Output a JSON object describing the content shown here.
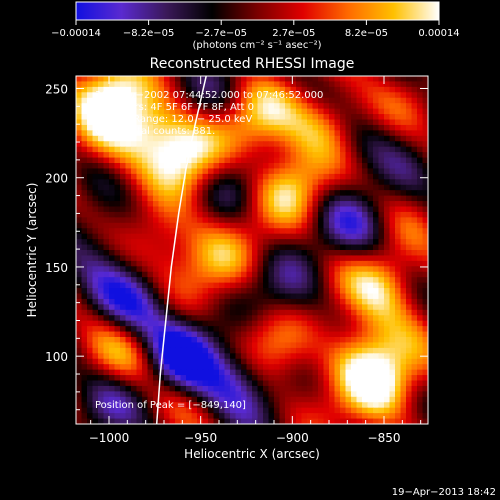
{
  "chart_data": {
    "type": "heatmap",
    "title": "Reconstructed RHESSI Image",
    "xlabel": "Heliocentric X (arcsec)",
    "ylabel": "Heliocentric Y (arcsec)",
    "xlim": [
      -1018,
      -826
    ],
    "ylim": [
      62,
      257
    ],
    "x_ticks": [
      -1000,
      -950,
      -900,
      -850
    ],
    "x_tick_labels": [
      "−1000",
      "−950",
      "−900",
      "−850"
    ],
    "y_ticks": [
      100,
      150,
      200,
      250
    ],
    "y_tick_labels": [
      "100",
      "150",
      "200",
      "250"
    ],
    "colorbar": {
      "range": [
        -0.00014,
        0.00014
      ],
      "tick_labels": [
        "−0.00014",
        "−8.2e−05",
        "−2.7e−05",
        "2.7e−05",
        "8.2e−05",
        "0.00014"
      ],
      "units": "(photons cm⁻² s⁻¹ asec⁻²)",
      "colors": [
        "#1010e0",
        "#5a2ad0",
        "#3a1858",
        "#000000",
        "#7a0000",
        "#e00000",
        "#ff6a00",
        "#ffc000",
        "#ffffff"
      ]
    },
    "annotations": {
      "time": "30−Nov−2002 07:44:52.000 to 07:46:52.000",
      "detectors": "Detectors: 4F 5F 6F 7F 8F, Att 0",
      "energy": "Energy Range: 12.0 − 25.0 keV",
      "clean": "Clean    Total counts: 881.",
      "peak": "Position of Peak = [−849,140]"
    },
    "limb_curve": {
      "x": [
        -974,
        -972,
        -969,
        -966,
        -962,
        -958,
        -953,
        -947
      ],
      "y": [
        62,
        90,
        120,
        150,
        180,
        205,
        230,
        257
      ]
    },
    "blobs": [
      {
        "x": -998,
        "y": 248,
        "amp": 0.95
      },
      {
        "x": -975,
        "y": 228,
        "amp": 0.85
      },
      {
        "x": -955,
        "y": 210,
        "amp": 0.9
      },
      {
        "x": -920,
        "y": 230,
        "amp": 0.85
      },
      {
        "x": -880,
        "y": 232,
        "amp": 0.85
      },
      {
        "x": -900,
        "y": 195,
        "amp": 1.0
      },
      {
        "x": -970,
        "y": 170,
        "amp": 0.7
      },
      {
        "x": -940,
        "y": 152,
        "amp": 0.75
      },
      {
        "x": -850,
        "y": 140,
        "amp": 1.0
      },
      {
        "x": -862,
        "y": 100,
        "amp": 0.8
      },
      {
        "x": -850,
        "y": 82,
        "amp": 1.0
      },
      {
        "x": -1003,
        "y": 220,
        "amp": 0.6
      },
      {
        "x": -990,
        "y": 100,
        "amp": 0.55
      },
      {
        "x": -910,
        "y": 105,
        "amp": 0.7
      },
      {
        "x": -985,
        "y": 130,
        "amp": -0.85
      },
      {
        "x": -960,
        "y": 100,
        "amp": -1.0
      },
      {
        "x": -930,
        "y": 90,
        "amp": -0.9
      },
      {
        "x": -1005,
        "y": 170,
        "amp": -0.6
      },
      {
        "x": -900,
        "y": 140,
        "amp": -0.55
      },
      {
        "x": -865,
        "y": 175,
        "amp": -0.6
      },
      {
        "x": -870,
        "y": 215,
        "amp": -0.5
      },
      {
        "x": -935,
        "y": 195,
        "amp": -0.55
      },
      {
        "x": -940,
        "y": 250,
        "amp": -0.4
      },
      {
        "x": -1000,
        "y": 75,
        "amp": -0.4
      }
    ]
  },
  "footer": {
    "date": "19−Apr−2013 18:42"
  }
}
